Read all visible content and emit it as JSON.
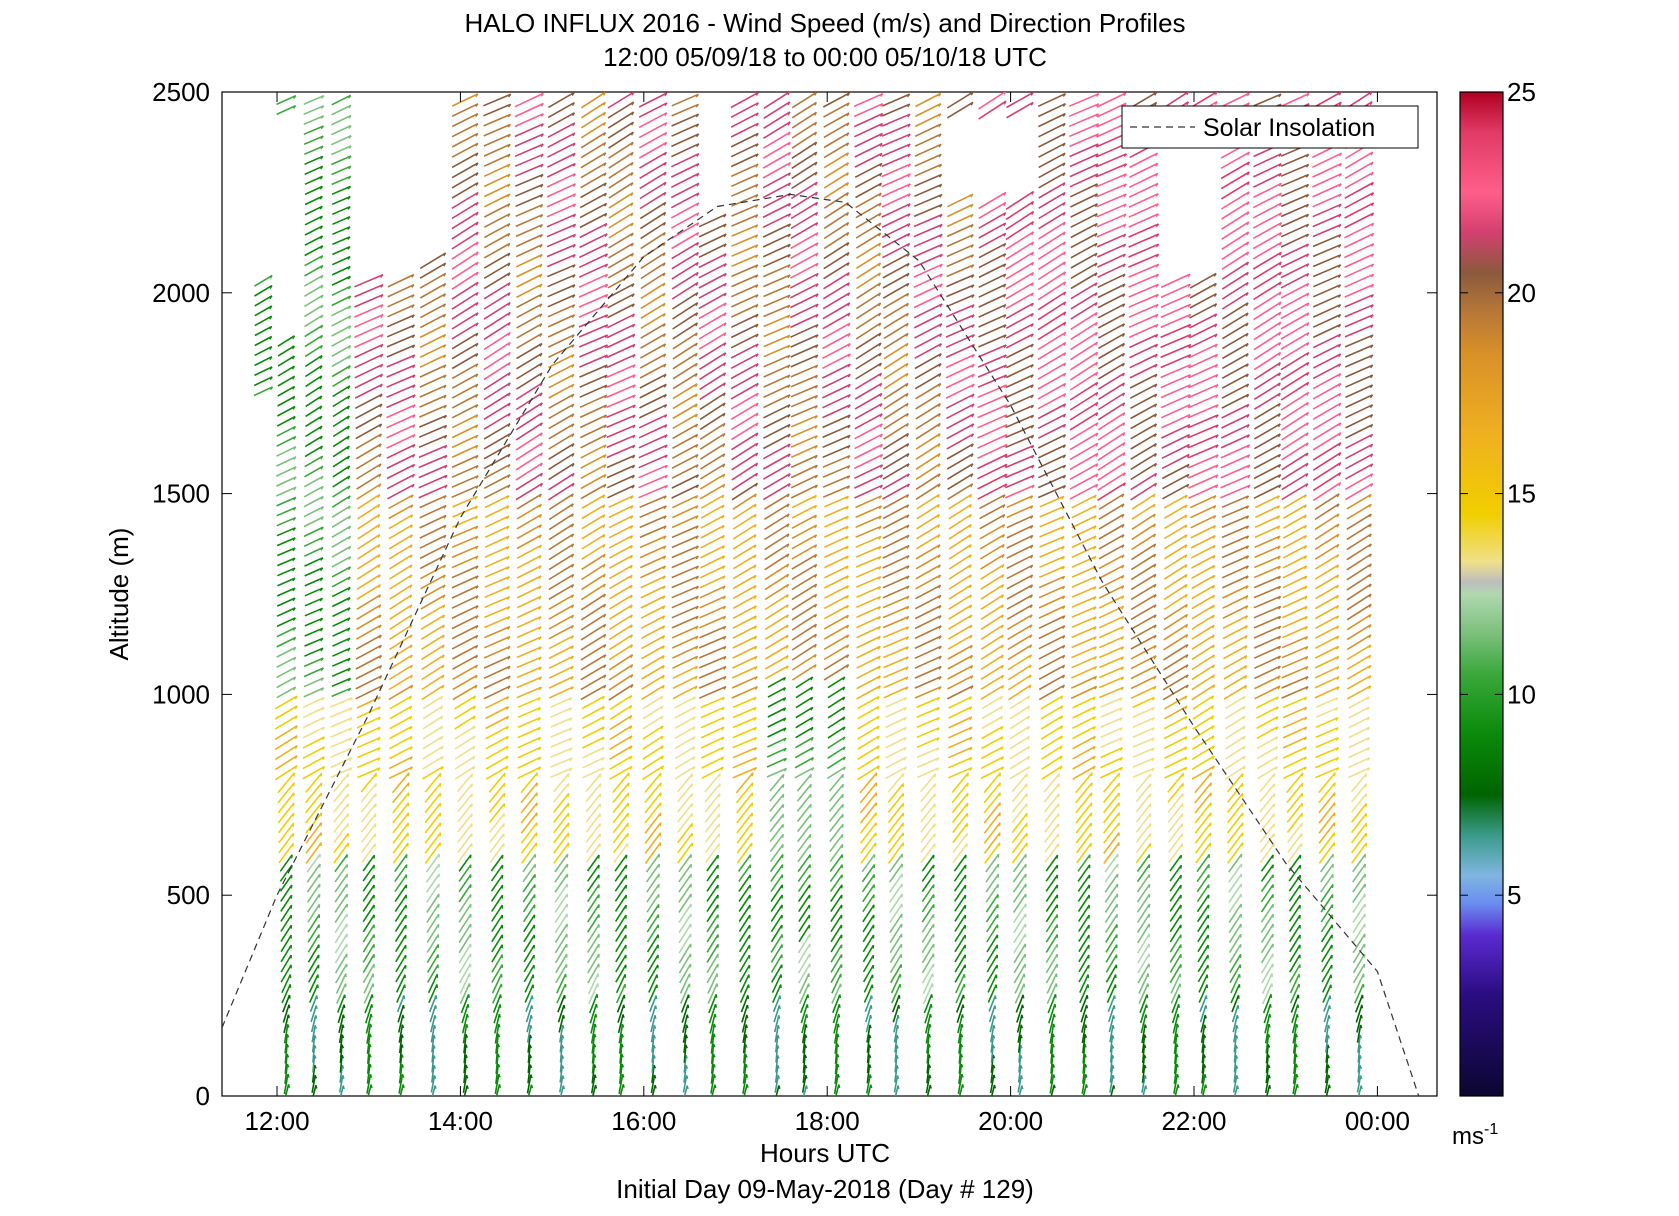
{
  "chart_data": {
    "type": "wind-barb-profile",
    "title": "HALO INFLUX 2016 - Wind Speed (m/s) and Direction Profiles",
    "subtitle": "12:00 05/09/18 to 00:00 05/10/18  UTC",
    "xlabel": "Hours UTC",
    "ylabel": "Altitude (m)",
    "footer": "Initial Day 09-May-2018 (Day # 129)",
    "x_unit": "hours UTC",
    "xlim": [
      11.4,
      24.65
    ],
    "ylim": [
      0,
      2500
    ],
    "x_ticks": [
      {
        "value": 12,
        "label": "12:00"
      },
      {
        "value": 14,
        "label": "14:00"
      },
      {
        "value": 16,
        "label": "16:00"
      },
      {
        "value": 18,
        "label": "18:00"
      },
      {
        "value": 20,
        "label": "20:00"
      },
      {
        "value": 22,
        "label": "22:00"
      },
      {
        "value": 24,
        "label": "00:00"
      }
    ],
    "y_ticks": [
      0,
      500,
      1000,
      1500,
      2000,
      2500
    ],
    "legend": {
      "entries": [
        "Solar Insolation"
      ],
      "placement": "top-right"
    },
    "colorbar": {
      "range": [
        0,
        25
      ],
      "ticks": [
        5,
        10,
        15,
        20,
        25
      ],
      "unit_label": "ms",
      "unit_exponent": "-1",
      "colors": [
        "#0b0730",
        "#2a0c80",
        "#5a2ad0",
        "#6a8ef0",
        "#7fb6e0",
        "#3a9a8a",
        "#006400",
        "#0a8a0a",
        "#3aa83a",
        "#7ac07a",
        "#b0d8b0",
        "#bdbdbd",
        "#f0e08a",
        "#f0cf00",
        "#efb020",
        "#d89028",
        "#b87838",
        "#8b5a3c",
        "#d24070",
        "#ff5e8a",
        "#e03a66",
        "#b00020"
      ],
      "color_stops": [
        0,
        2.5,
        4,
        4.8,
        5.5,
        6.5,
        7.5,
        9,
        10.5,
        11.5,
        12.5,
        12.8,
        13.3,
        14.5,
        16.5,
        18.5,
        19.5,
        20.5,
        21.5,
        22.5,
        24,
        25
      ]
    },
    "solar_insolation_curve": {
      "x": [
        11.4,
        12.0,
        13.0,
        14.0,
        15.0,
        16.0,
        16.8,
        17.6,
        18.2,
        19.0,
        20.0,
        21.0,
        22.0,
        23.0,
        24.0,
        24.45
      ],
      "y": [
        170,
        500,
        950,
        1440,
        1820,
        2090,
        2215,
        2245,
        2225,
        2080,
        1720,
        1280,
        920,
        580,
        310,
        0
      ]
    },
    "profiles": {
      "times": [
        11.85,
        12.1,
        12.4,
        12.7,
        13.0,
        13.35,
        13.7,
        14.05,
        14.4,
        14.75,
        15.1,
        15.45,
        15.75,
        16.1,
        16.45,
        16.75,
        17.1,
        17.45,
        17.75,
        18.1,
        18.45,
        18.75,
        19.1,
        19.45,
        19.8,
        20.1,
        20.45,
        20.8,
        21.1,
        21.45,
        21.8,
        22.1,
        22.45,
        22.8,
        23.1,
        23.45,
        23.8
      ],
      "altitudes_m": [
        5,
        30,
        60,
        100,
        150,
        200,
        250,
        300,
        400,
        500,
        600,
        700,
        800,
        900,
        1000,
        1100,
        1200,
        1300,
        1400,
        1500,
        1600,
        1700,
        1800,
        1900,
        2000,
        2100,
        2200,
        2300,
        2400,
        2500
      ],
      "speed_ms_by_altitude_band": [
        {
          "band_m": [
            0,
            250
          ],
          "speed": 8.5
        },
        {
          "band_m": [
            250,
            600
          ],
          "speed": 11.0
        },
        {
          "band_m": [
            600,
            1000
          ],
          "speed": 15.0
        },
        {
          "band_m": [
            1000,
            1500
          ],
          "speed": 18.5
        },
        {
          "band_m": [
            1500,
            2500
          ],
          "speed": 21.0
        }
      ],
      "direction_note": "dominant southwesterly flow veering with height"
    }
  }
}
